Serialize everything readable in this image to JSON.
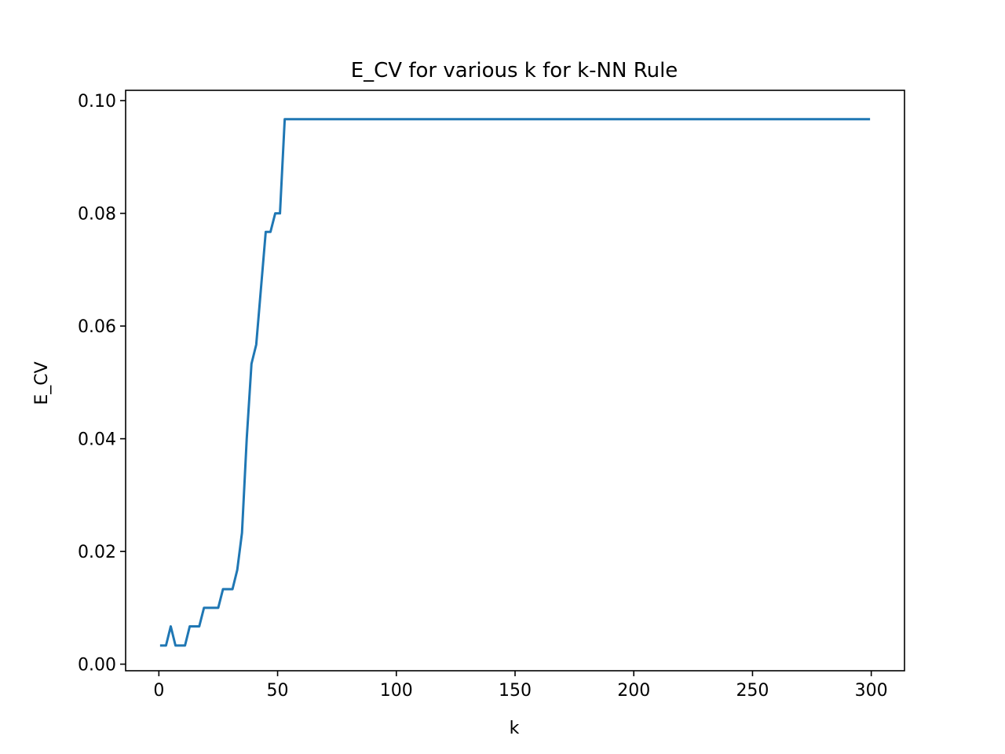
{
  "chart_data": {
    "type": "line",
    "title": "E_CV for various k for k-NN Rule",
    "xlabel": "k",
    "ylabel": "E_CV",
    "xlim": [
      -14,
      314
    ],
    "ylim": [
      -0.00117,
      0.10183
    ],
    "xticks": [
      0,
      50,
      100,
      150,
      200,
      250,
      300
    ],
    "xtick_labels": [
      "0",
      "50",
      "100",
      "150",
      "200",
      "250",
      "300"
    ],
    "yticks": [
      0.0,
      0.02,
      0.04,
      0.06,
      0.08,
      0.1
    ],
    "ytick_labels": [
      "0.00",
      "0.02",
      "0.04",
      "0.06",
      "0.08",
      "0.10"
    ],
    "grid": false,
    "legend": "none",
    "series": [
      {
        "color": "#1f77b4",
        "x": [
          1,
          3,
          5,
          7,
          9,
          11,
          13,
          15,
          17,
          19,
          21,
          23,
          25,
          27,
          29,
          31,
          33,
          35,
          37,
          39,
          41,
          43,
          45,
          47,
          49,
          51,
          53,
          55,
          60,
          80,
          100,
          150,
          200,
          250,
          299
        ],
        "y": [
          0.0033,
          0.0033,
          0.0067,
          0.0033,
          0.0033,
          0.0033,
          0.0067,
          0.0067,
          0.0067,
          0.01,
          0.01,
          0.01,
          0.01,
          0.0133,
          0.0133,
          0.0133,
          0.0167,
          0.0233,
          0.04,
          0.0533,
          0.0567,
          0.0667,
          0.0767,
          0.0767,
          0.08,
          0.08,
          0.0967,
          0.0967,
          0.0967,
          0.0967,
          0.0967,
          0.0967,
          0.0967,
          0.0967,
          0.0967
        ]
      }
    ]
  }
}
